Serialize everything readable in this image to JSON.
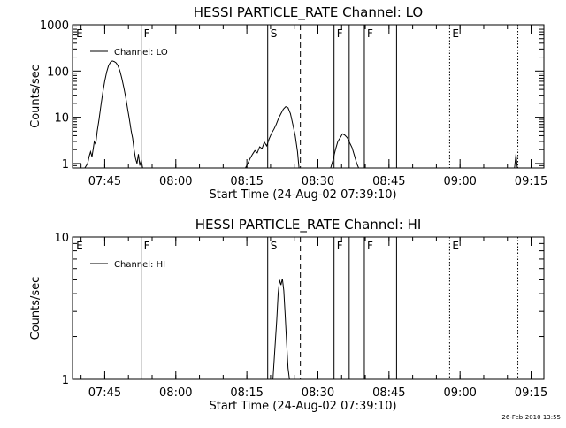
{
  "footer": {
    "date": "26-Feb-2010 13:55"
  },
  "chart_data": [
    {
      "type": "line",
      "title": "HESSI PARTICLE_RATE Channel: LO",
      "xlabel": "Start Time (24-Aug-02 07:39:10)",
      "ylabel": "Counts/sec",
      "x_unit": "minutes after 07:39:10",
      "xlim": [
        0,
        99.5
      ],
      "ylim": [
        0.8,
        1000
      ],
      "yscale": "log",
      "x_ticks": [
        {
          "t": 6.8,
          "label": "07:45"
        },
        {
          "t": 21.8,
          "label": "08:00"
        },
        {
          "t": 36.8,
          "label": "08:15"
        },
        {
          "t": 51.8,
          "label": "08:30"
        },
        {
          "t": 66.8,
          "label": "08:45"
        },
        {
          "t": 81.8,
          "label": "09:00"
        },
        {
          "t": 96.8,
          "label": "09:15"
        }
      ],
      "y_ticks": [
        {
          "v": 1,
          "label": "1"
        },
        {
          "v": 10,
          "label": "10"
        },
        {
          "v": 100,
          "label": "100"
        },
        {
          "v": 1000,
          "label": "1000"
        }
      ],
      "legend": {
        "label": "Channel: LO",
        "position": "top-left"
      },
      "markers": [
        {
          "t": 0.2,
          "label": "E",
          "style": "none"
        },
        {
          "t": 14.5,
          "label": "F",
          "style": "solid"
        },
        {
          "t": 41.2,
          "label": "S",
          "style": "solid"
        },
        {
          "t": 48.1,
          "label": "",
          "style": "dashed"
        },
        {
          "t": 55.2,
          "label": "F",
          "style": "solid"
        },
        {
          "t": 58.4,
          "label": "",
          "style": "solid"
        },
        {
          "t": 61.6,
          "label": "F",
          "style": "solid"
        },
        {
          "t": 68.4,
          "label": "",
          "style": "solid"
        },
        {
          "t": 79.6,
          "label": "E",
          "style": "dotted"
        },
        {
          "t": 94.0,
          "label": "",
          "style": "dotted"
        }
      ],
      "series": [
        {
          "name": "Channel: LO",
          "x": [
            2.6,
            3.2,
            3.5,
            3.8,
            4.1,
            4.4,
            4.6,
            4.9,
            5.2,
            5.6,
            6.0,
            6.4,
            6.8,
            7.2,
            7.6,
            8.0,
            8.4,
            8.8,
            9.2,
            9.6,
            10.0,
            10.4,
            10.8,
            11.2,
            11.6,
            12.0,
            12.4,
            12.7,
            13.0,
            13.3,
            13.6,
            13.9,
            14.2,
            14.5,
            14.8,
            36.5,
            37.0,
            37.5,
            38.0,
            38.5,
            39.0,
            39.5,
            40.0,
            40.5,
            41.0,
            41.5,
            42.0,
            42.5,
            43.0,
            43.5,
            44.0,
            44.5,
            45.0,
            45.5,
            46.0,
            46.5,
            47.0,
            47.5,
            47.8,
            54.5,
            55.0,
            55.5,
            56.0,
            56.5,
            57.0,
            57.5,
            58.0,
            58.5,
            59.0,
            59.5,
            60.0,
            60.4,
            93.3,
            93.6,
            93.9
          ],
          "y": [
            0.8,
            1.0,
            1.4,
            1.8,
            1.4,
            2.2,
            3.0,
            2.6,
            5.0,
            9.0,
            18,
            35,
            60,
            95,
            130,
            155,
            165,
            160,
            150,
            130,
            100,
            70,
            45,
            28,
            16,
            9,
            5,
            3.5,
            2.0,
            1.3,
            1.0,
            1.6,
            0.9,
            1.2,
            0.8,
            0.8,
            1.0,
            1.3,
            1.6,
            1.9,
            1.7,
            2.3,
            2.1,
            2.9,
            2.4,
            3.4,
            4.5,
            5.5,
            7.0,
            9.5,
            12,
            15,
            17,
            16,
            12,
            7,
            4,
            1.8,
            0.8,
            0.8,
            1.2,
            2.0,
            3.0,
            3.6,
            4.4,
            4.1,
            3.6,
            2.8,
            2.2,
            1.5,
            1.0,
            0.8,
            0.8,
            1.6,
            0.8
          ]
        }
      ]
    },
    {
      "type": "line",
      "title": "HESSI PARTICLE_RATE Channel: HI",
      "xlabel": "Start Time (24-Aug-02 07:39:10)",
      "ylabel": "Counts/sec",
      "x_unit": "minutes after 07:39:10",
      "xlim": [
        0,
        99.5
      ],
      "ylim": [
        1,
        10
      ],
      "yscale": "log",
      "x_ticks": [
        {
          "t": 6.8,
          "label": "07:45"
        },
        {
          "t": 21.8,
          "label": "08:00"
        },
        {
          "t": 36.8,
          "label": "08:15"
        },
        {
          "t": 51.8,
          "label": "08:30"
        },
        {
          "t": 66.8,
          "label": "08:45"
        },
        {
          "t": 81.8,
          "label": "09:00"
        },
        {
          "t": 96.8,
          "label": "09:15"
        }
      ],
      "y_ticks": [
        {
          "v": 1,
          "label": "1"
        },
        {
          "v": 10,
          "label": "10"
        }
      ],
      "legend": {
        "label": "Channel: HI",
        "position": "top-left"
      },
      "markers": [
        {
          "t": 0.2,
          "label": "E",
          "style": "none"
        },
        {
          "t": 14.5,
          "label": "F",
          "style": "solid"
        },
        {
          "t": 41.2,
          "label": "S",
          "style": "solid"
        },
        {
          "t": 48.1,
          "label": "",
          "style": "dashed"
        },
        {
          "t": 55.2,
          "label": "F",
          "style": "solid"
        },
        {
          "t": 58.4,
          "label": "",
          "style": "solid"
        },
        {
          "t": 61.6,
          "label": "F",
          "style": "solid"
        },
        {
          "t": 68.4,
          "label": "",
          "style": "solid"
        },
        {
          "t": 79.6,
          "label": "E",
          "style": "dotted"
        },
        {
          "t": 94.0,
          "label": "",
          "style": "dotted"
        }
      ],
      "series": [
        {
          "name": "Channel: HI",
          "x": [
            42.3,
            42.7,
            43.1,
            43.4,
            43.7,
            44.0,
            44.3,
            44.6,
            44.9,
            45.2,
            45.5,
            45.8
          ],
          "y": [
            1.0,
            1.6,
            2.6,
            4.0,
            5.0,
            4.6,
            5.1,
            4.2,
            2.8,
            1.8,
            1.2,
            1.0
          ]
        }
      ]
    }
  ]
}
